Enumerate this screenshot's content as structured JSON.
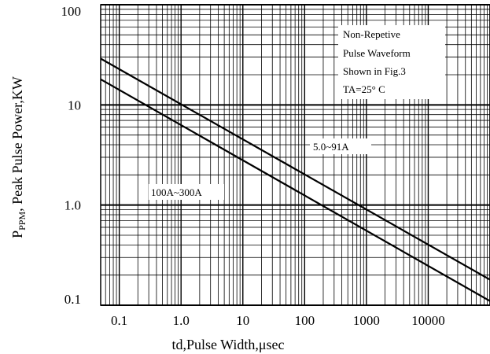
{
  "chart_data": {
    "type": "line",
    "title": "",
    "xlabel": "td,Pulse Width,μsec",
    "ylabel_main": "P",
    "ylabel_sub": "PPM",
    "ylabel_rest": ", Peak Pulse Power,KW",
    "xscale": "log",
    "yscale": "log",
    "xlim": [
      0.05,
      100000
    ],
    "ylim": [
      0.1,
      100
    ],
    "x_ticks": [
      {
        "value": 0.1,
        "label": "0.1"
      },
      {
        "value": 1,
        "label": "1.0"
      },
      {
        "value": 10,
        "label": "10"
      },
      {
        "value": 100,
        "label": "100"
      },
      {
        "value": 1000,
        "label": "1000"
      },
      {
        "value": 10000,
        "label": "10000"
      }
    ],
    "y_ticks": [
      {
        "value": 0.1,
        "label": "0.1"
      },
      {
        "value": 1,
        "label": "1.0"
      },
      {
        "value": 10,
        "label": "10"
      },
      {
        "value": 100,
        "label": "100"
      }
    ],
    "grid": true,
    "series": [
      {
        "name": "5.0~91A",
        "x": [
          0.05,
          100000
        ],
        "y": [
          29,
          0.18
        ]
      },
      {
        "name": "100A~300A",
        "x": [
          0.05,
          100000
        ],
        "y": [
          18,
          0.11
        ]
      }
    ],
    "annotations": {
      "conditions": [
        "Non-Repetive",
        "Pulse Waveform",
        "Shown in Fig.3",
        "TA=25° C"
      ]
    }
  }
}
